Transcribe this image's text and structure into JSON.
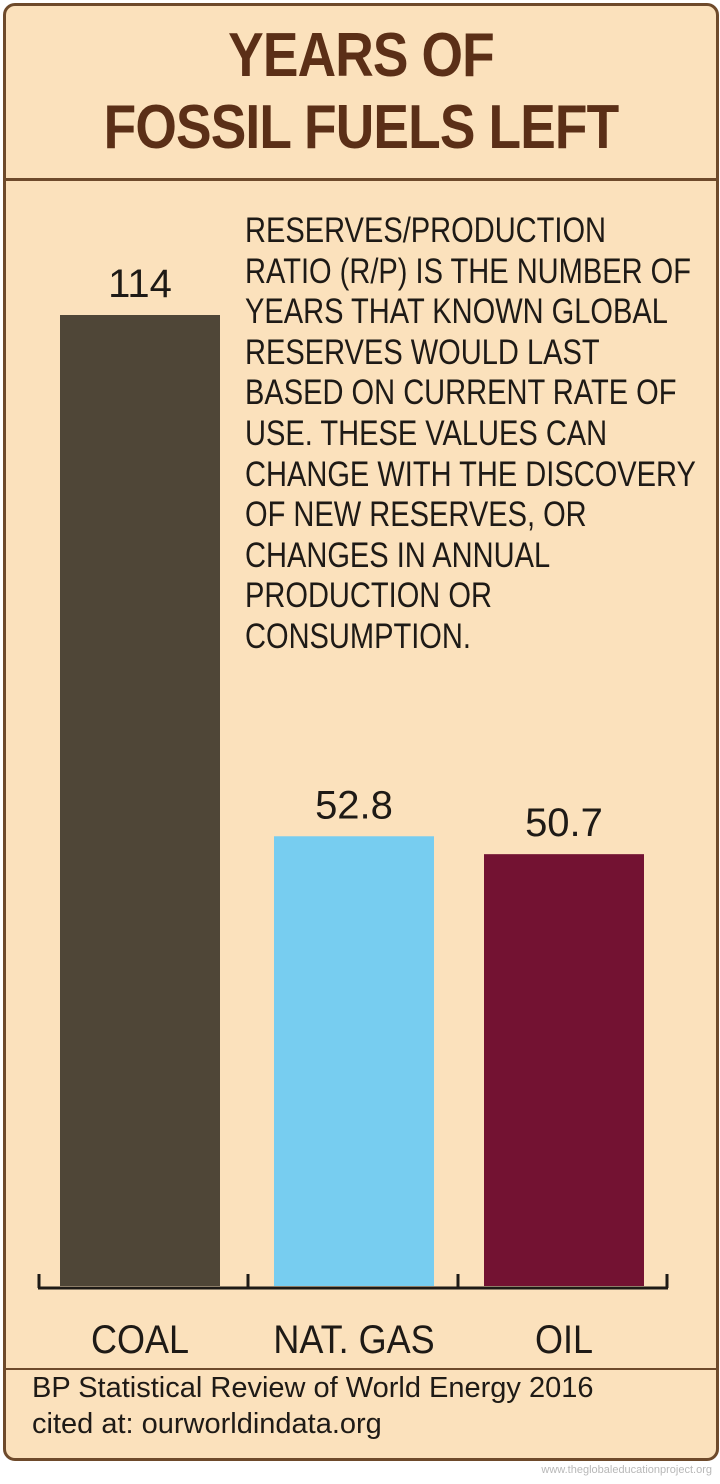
{
  "chart_data": {
    "type": "bar",
    "title": "YEARS OF\nFOSSIL FUELS LEFT",
    "annotation": "RESERVES/PRODUCTION RATIO (R/P) IS THE NUMBER OF YEARS THAT KNOWN GLOBAL RESERVES WOULD LAST BASED ON CURRENT RATE OF USE. THESE VALUES CAN CHANGE WITH THE DISCOVERY OF NEW RESERVES, OR CHANGES IN ANNUAL PRODUCTION OR CONSUMPTION.",
    "categories": [
      "COAL",
      "NAT. GAS",
      "OIL"
    ],
    "values": [
      114,
      52.8,
      50.7
    ],
    "colors": [
      "#4f4637",
      "#77cdf0",
      "#731232"
    ],
    "ylim": [
      0,
      114
    ],
    "source": [
      "BP Statistical Review of World Energy 2016",
      "cited at: ourworldindata.org"
    ],
    "watermark": "www.theglobaleducationproject.org"
  }
}
